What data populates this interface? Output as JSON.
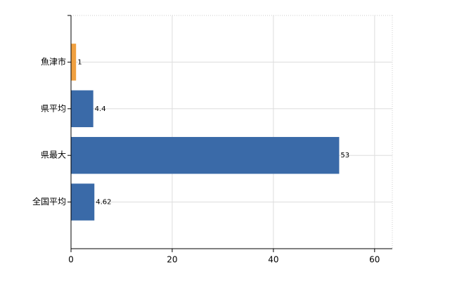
{
  "chart_data": {
    "type": "hbar",
    "categories": [
      "魚津市",
      "県平均",
      "県最大",
      "全国平均"
    ],
    "values": [
      1,
      4.4,
      53,
      4.62
    ],
    "colors": [
      "#f0a040",
      "#3a6aa8",
      "#3a6aa8",
      "#3a6aa8"
    ],
    "xlim": [
      0,
      63.5
    ],
    "xticks": [
      0,
      20,
      40,
      60
    ],
    "grid": true
  }
}
